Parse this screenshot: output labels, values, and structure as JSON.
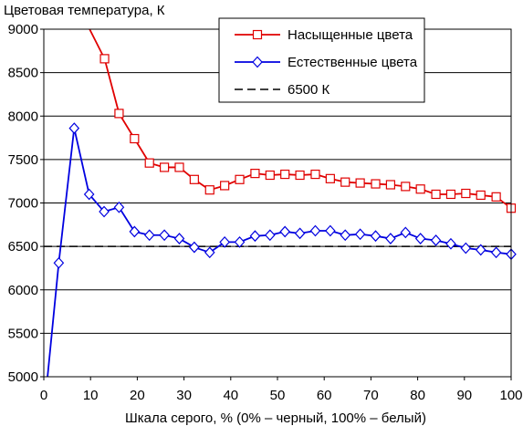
{
  "chart_data": {
    "type": "line",
    "title": "Цветовая температура, К",
    "xlabel": "Шкала серого, % (0% – черный, 100% – белый)",
    "ylabel": "",
    "xlim": [
      0,
      100
    ],
    "ylim": [
      5000,
      9000
    ],
    "xticks": [
      0,
      10,
      20,
      30,
      40,
      50,
      60,
      70,
      80,
      90,
      100
    ],
    "yticks": [
      5000,
      5500,
      6000,
      6500,
      7000,
      7500,
      8000,
      8500,
      9000
    ],
    "grid": "horizontal",
    "legend_position": "top-right",
    "series": [
      {
        "name": "Насыщенные цвета",
        "color": "#e00000",
        "marker": "square",
        "x": [
          13.0,
          16.1,
          19.4,
          22.6,
          25.8,
          29.0,
          32.2,
          35.5,
          38.7,
          41.9,
          45.2,
          48.4,
          51.6,
          54.8,
          58.1,
          61.3,
          64.5,
          67.7,
          71.0,
          74.2,
          77.4,
          80.6,
          83.9,
          87.1,
          90.3,
          93.5,
          96.8,
          100.0
        ],
        "y": [
          8660,
          8030,
          7740,
          7460,
          7410,
          7410,
          7270,
          7150,
          7200,
          7270,
          7340,
          7320,
          7330,
          7320,
          7330,
          7280,
          7240,
          7230,
          7220,
          7210,
          7190,
          7160,
          7100,
          7100,
          7110,
          7090,
          7070,
          6940
        ],
        "start_x": 9.8,
        "start_y": 9000
      },
      {
        "name": "Естественные цвета",
        "color": "#0000e0",
        "marker": "diamond",
        "x": [
          3.2,
          6.5,
          9.7,
          12.9,
          16.1,
          19.4,
          22.6,
          25.8,
          29.0,
          32.2,
          35.5,
          38.7,
          41.9,
          45.2,
          48.4,
          51.6,
          54.8,
          58.1,
          61.3,
          64.5,
          67.7,
          71.0,
          74.2,
          77.4,
          80.6,
          83.9,
          87.1,
          90.3,
          93.5,
          96.8,
          100.0
        ],
        "y": [
          6310,
          7860,
          7100,
          6900,
          6950,
          6670,
          6630,
          6630,
          6590,
          6490,
          6430,
          6550,
          6550,
          6620,
          6630,
          6670,
          6650,
          6680,
          6680,
          6630,
          6640,
          6620,
          6590,
          6660,
          6590,
          6570,
          6530,
          6480,
          6460,
          6430,
          6410
        ],
        "start_x": 0.8,
        "start_y": 5000
      },
      {
        "name": "6500 К",
        "color": "#000000",
        "dashed": true,
        "x": [
          0,
          100
        ],
        "y": [
          6500,
          6500
        ]
      }
    ]
  }
}
